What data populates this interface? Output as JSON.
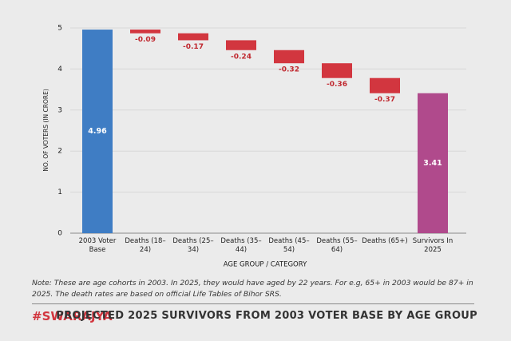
{
  "brand": "#SWARAJYA",
  "chart_data": {
    "type": "waterfall",
    "title": "PROJECTED 2025 SURVIVORS FROM 2003 VOTER BASE BY AGE GROUP",
    "note": "Note: These are age cohorts in 2003. In 2025, they would have aged by 22 years. For e.g, 65+ in 2003 would be 87+ in 2025. The death rates are based on official Life Tables of Bihor SRS.",
    "x_label": "AGE GROUP / CATEGORY",
    "y_label": "NO. OF VOTERS (IN CRORE)",
    "categories": [
      "2003 Voter Base",
      "Deaths (18–24)",
      "Deaths (25–34)",
      "Deaths (35–44)",
      "Deaths (45–54)",
      "Deaths (55–64)",
      "Deaths (65+)",
      "Survivors In 2025"
    ],
    "values": [
      4.96,
      -0.09,
      -0.17,
      -0.24,
      -0.32,
      -0.36,
      -0.37,
      3.41
    ],
    "kinds": [
      "total",
      "delta",
      "delta",
      "delta",
      "delta",
      "delta",
      "delta",
      "total"
    ],
    "colors": {
      "base": "#3f7dc4",
      "decrease": "#d2363f",
      "final": "#b04a8c"
    },
    "ylim": [
      0,
      5
    ],
    "yticks": [
      0,
      1,
      2,
      3,
      4,
      5
    ],
    "grid": true
  }
}
